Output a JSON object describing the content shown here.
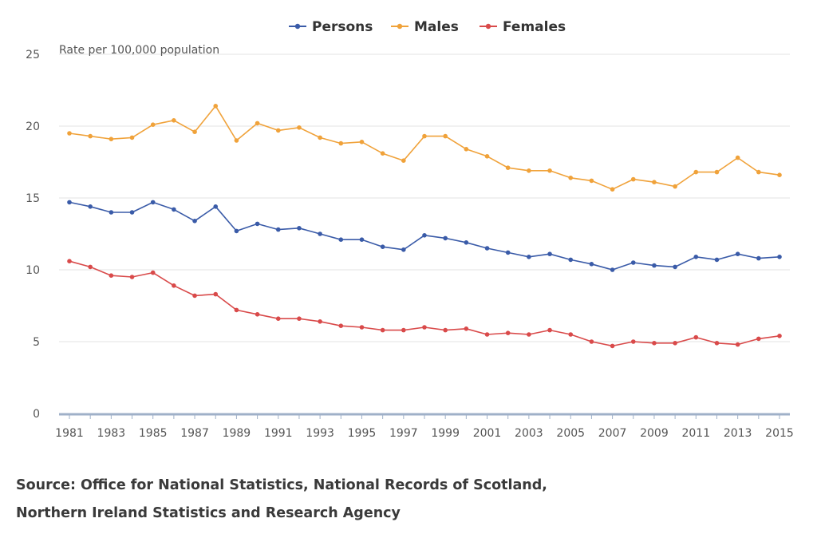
{
  "chart_data": {
    "type": "line",
    "ylabel": "Rate per 100,000 population",
    "ylim": [
      0,
      25
    ],
    "yticks": [
      "0",
      "5",
      "10",
      "15",
      "20",
      "25"
    ],
    "x": [
      1981,
      1982,
      1983,
      1984,
      1985,
      1986,
      1987,
      1988,
      1989,
      1990,
      1991,
      1992,
      1993,
      1994,
      1995,
      1996,
      1997,
      1998,
      1999,
      2000,
      2001,
      2002,
      2003,
      2004,
      2005,
      2006,
      2007,
      2008,
      2009,
      2010,
      2011,
      2012,
      2013,
      2014,
      2015
    ],
    "xticks": [
      "1981",
      "1983",
      "1985",
      "1987",
      "1989",
      "1991",
      "1993",
      "1995",
      "1997",
      "1999",
      "2001",
      "2003",
      "2005",
      "2007",
      "2009",
      "2011",
      "2013",
      "2015"
    ],
    "grid": true,
    "legend_position": "top-center",
    "series": [
      {
        "name": "Persons",
        "color": "#3a5ba8",
        "values": [
          14.7,
          14.4,
          14.0,
          14.0,
          14.7,
          14.2,
          13.4,
          14.4,
          12.7,
          13.2,
          12.8,
          12.9,
          12.5,
          12.1,
          12.1,
          11.6,
          11.4,
          12.4,
          12.2,
          11.9,
          11.5,
          11.2,
          10.9,
          11.1,
          10.7,
          10.4,
          10.0,
          10.5,
          10.3,
          10.2,
          10.9,
          10.7,
          11.1,
          10.8,
          10.9
        ]
      },
      {
        "name": "Males",
        "color": "#f0a23a",
        "values": [
          19.5,
          19.3,
          19.1,
          19.2,
          20.1,
          20.4,
          19.6,
          21.4,
          19.0,
          20.2,
          19.7,
          19.9,
          19.2,
          18.8,
          18.9,
          18.1,
          17.6,
          19.3,
          19.3,
          18.4,
          17.9,
          17.1,
          16.9,
          16.9,
          16.4,
          16.2,
          15.6,
          16.3,
          16.1,
          15.8,
          16.8,
          16.8,
          17.8,
          16.8,
          16.6
        ]
      },
      {
        "name": "Females",
        "color": "#d94a4a",
        "values": [
          10.6,
          10.2,
          9.6,
          9.5,
          9.8,
          8.9,
          8.2,
          8.3,
          7.2,
          6.9,
          6.6,
          6.6,
          6.4,
          6.1,
          6.0,
          5.8,
          5.8,
          6.0,
          5.8,
          5.9,
          5.5,
          5.6,
          5.5,
          5.8,
          5.5,
          5.0,
          4.7,
          5.0,
          4.9,
          4.9,
          5.3,
          4.9,
          4.8,
          5.2,
          5.4
        ]
      }
    ]
  },
  "source": {
    "line1": "Source: Office for National Statistics, National Records of Scotland,",
    "line2": "Northern Ireland Statistics and Research Agency"
  }
}
